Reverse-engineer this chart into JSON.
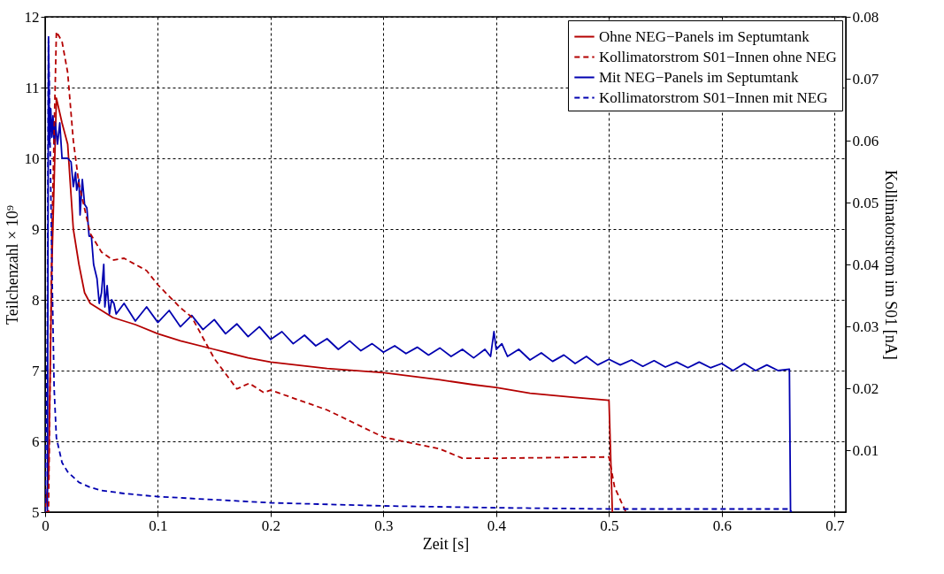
{
  "chart_data": {
    "type": "line",
    "xlabel": "Zeit [s]",
    "ylabel": "Teilchenzahl × 10⁹",
    "y2label": "Kollimatorstrom  im S01 [nA]",
    "xlim": [
      0,
      0.71
    ],
    "xticks": [
      0,
      0.1,
      0.2,
      0.3,
      0.4,
      0.5,
      0.6,
      0.7
    ],
    "ylim": [
      5,
      12
    ],
    "yticks": [
      5,
      6,
      7,
      8,
      9,
      10,
      11,
      12
    ],
    "y2lim": [
      0,
      0.08
    ],
    "y2ticks": [
      0.01,
      0.02,
      0.03,
      0.04,
      0.05,
      0.06,
      0.07,
      0.08
    ],
    "grid": true,
    "legend": "top right",
    "series": [
      {
        "name": "Ohne NEG−Panels im Septumtank",
        "color": "#b40000",
        "line_style": "solid",
        "x": [
          0,
          0.003,
          0.006,
          0.01,
          0.015,
          0.02,
          0.025,
          0.03,
          0.035,
          0.04,
          0.05,
          0.06,
          0.08,
          0.1,
          0.12,
          0.15,
          0.18,
          0.2,
          0.25,
          0.3,
          0.35,
          0.38,
          0.4,
          0.43,
          0.47,
          0.5,
          0.503
        ],
        "values": [
          5,
          5.5,
          8.5,
          10.85,
          10.5,
          10.2,
          9.0,
          8.5,
          8.1,
          7.95,
          7.85,
          7.75,
          7.65,
          7.52,
          7.42,
          7.3,
          7.18,
          7.12,
          7.03,
          6.97,
          6.87,
          6.8,
          6.76,
          6.68,
          6.62,
          6.58,
          5
        ]
      },
      {
        "name": "Kollimatorstrom S01−Innen ohne NEG",
        "color": "#b40000",
        "line_style": "dashed",
        "axis": "y2",
        "x": [
          0,
          0.003,
          0.006,
          0.01,
          0.015,
          0.02,
          0.025,
          0.03,
          0.04,
          0.05,
          0.06,
          0.07,
          0.08,
          0.09,
          0.1,
          0.12,
          0.13,
          0.15,
          0.17,
          0.181,
          0.194,
          0.2,
          0.25,
          0.3,
          0.35,
          0.37,
          0.4,
          0.45,
          0.5,
          0.505,
          0.515
        ],
        "values": [
          0,
          0,
          0.045,
          0.0776,
          0.076,
          0.071,
          0.06,
          0.053,
          0.045,
          0.042,
          0.0407,
          0.041,
          0.04,
          0.039,
          0.0367,
          0.033,
          0.0315,
          0.0248,
          0.0199,
          0.0208,
          0.0193,
          0.0197,
          0.0165,
          0.0121,
          0.0102,
          0.0087,
          0.0087,
          0.0088,
          0.0089,
          0.004,
          0
        ]
      },
      {
        "name": "Mit NEG−Panels im Septumtank",
        "color": "#0000b0",
        "line_style": "solid",
        "x": [
          0,
          0.002,
          0.003,
          0.004,
          0.005,
          0.006,
          0.007,
          0.008,
          0.009,
          0.011,
          0.013,
          0.015,
          0.02,
          0.023,
          0.025,
          0.027,
          0.028,
          0.03,
          0.031,
          0.033,
          0.035,
          0.037,
          0.039,
          0.041,
          0.043,
          0.046,
          0.048,
          0.05,
          0.052,
          0.053,
          0.055,
          0.057,
          0.059,
          0.061,
          0.063,
          0.07,
          0.08,
          0.09,
          0.1,
          0.11,
          0.12,
          0.13,
          0.14,
          0.15,
          0.16,
          0.17,
          0.18,
          0.19,
          0.2,
          0.21,
          0.22,
          0.23,
          0.24,
          0.25,
          0.26,
          0.27,
          0.28,
          0.29,
          0.3,
          0.31,
          0.32,
          0.33,
          0.34,
          0.35,
          0.36,
          0.37,
          0.38,
          0.39,
          0.395,
          0.398,
          0.4,
          0.405,
          0.41,
          0.42,
          0.43,
          0.44,
          0.45,
          0.46,
          0.47,
          0.48,
          0.49,
          0.5,
          0.51,
          0.52,
          0.53,
          0.54,
          0.55,
          0.56,
          0.57,
          0.58,
          0.59,
          0.6,
          0.61,
          0.62,
          0.63,
          0.64,
          0.65,
          0.66,
          0.661
        ],
        "values": [
          5,
          5,
          11.65,
          10.2,
          10.7,
          10.3,
          10.6,
          10.2,
          10.5,
          10.2,
          10.5,
          10.0,
          10.0,
          9.95,
          9.6,
          9.8,
          9.55,
          9.7,
          9.2,
          9.7,
          9.35,
          9.3,
          8.9,
          8.9,
          8.5,
          8.3,
          7.95,
          8.1,
          8.5,
          7.9,
          8.2,
          7.8,
          8.0,
          7.95,
          7.8,
          7.95,
          7.7,
          7.9,
          7.68,
          7.85,
          7.62,
          7.78,
          7.58,
          7.72,
          7.52,
          7.66,
          7.48,
          7.62,
          7.44,
          7.55,
          7.38,
          7.5,
          7.35,
          7.45,
          7.3,
          7.42,
          7.28,
          7.38,
          7.26,
          7.35,
          7.24,
          7.33,
          7.22,
          7.32,
          7.2,
          7.3,
          7.18,
          7.3,
          7.2,
          7.55,
          7.3,
          7.38,
          7.2,
          7.3,
          7.15,
          7.25,
          7.13,
          7.22,
          7.1,
          7.2,
          7.08,
          7.16,
          7.08,
          7.15,
          7.06,
          7.14,
          7.05,
          7.12,
          7.04,
          7.12,
          7.04,
          7.1,
          7.0,
          7.1,
          7.0,
          7.08,
          7.0,
          7.02,
          5
        ]
      },
      {
        "name": "Kollimatorstrom S01−Innen mit NEG",
        "color": "#0000b0",
        "line_style": "dashed",
        "axis": "y2",
        "x": [
          0,
          0.002,
          0.003,
          0.006,
          0.008,
          0.01,
          0.015,
          0.02,
          0.03,
          0.04,
          0.05,
          0.07,
          0.1,
          0.15,
          0.2,
          0.3,
          0.4,
          0.5,
          0.66,
          0.662
        ],
        "values": [
          0,
          0.03,
          0.077,
          0.04,
          0.02,
          0.012,
          0.008,
          0.0065,
          0.0048,
          0.004,
          0.0035,
          0.003,
          0.0025,
          0.002,
          0.0015,
          0.001,
          0.0007,
          0.0005,
          0.0005,
          0
        ]
      }
    ]
  }
}
